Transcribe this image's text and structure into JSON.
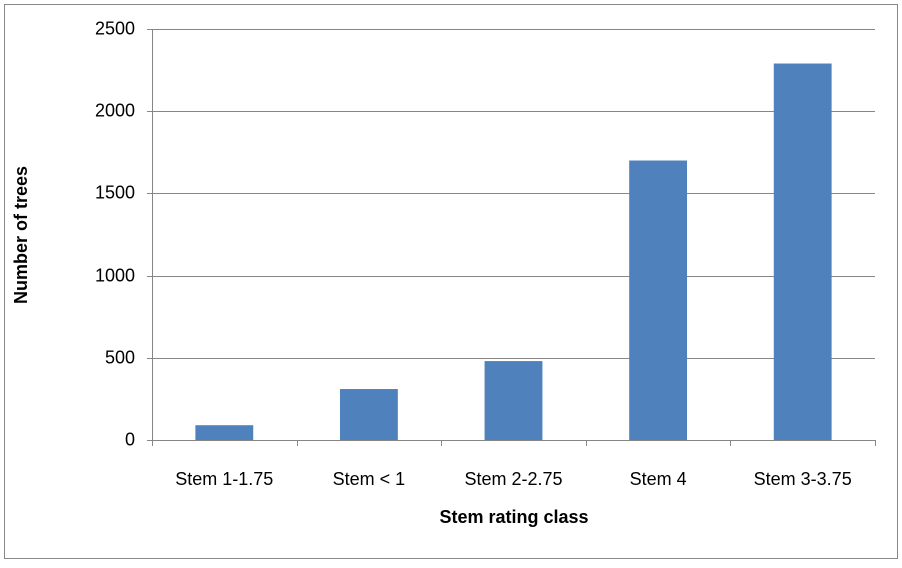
{
  "chart_data": {
    "type": "bar",
    "categories": [
      "Stem 1-1.75",
      "Stem < 1",
      "Stem 2-2.75",
      "Stem 4",
      "Stem 3-3.75"
    ],
    "values": [
      90,
      310,
      480,
      1700,
      2290
    ],
    "color": "#4f81bd",
    "x_label": "Stem rating class",
    "y_label": "Number of trees",
    "ylim": [
      0,
      2500
    ],
    "yticks": [
      0,
      500,
      1000,
      1500,
      2000,
      2500
    ],
    "grid": true
  }
}
